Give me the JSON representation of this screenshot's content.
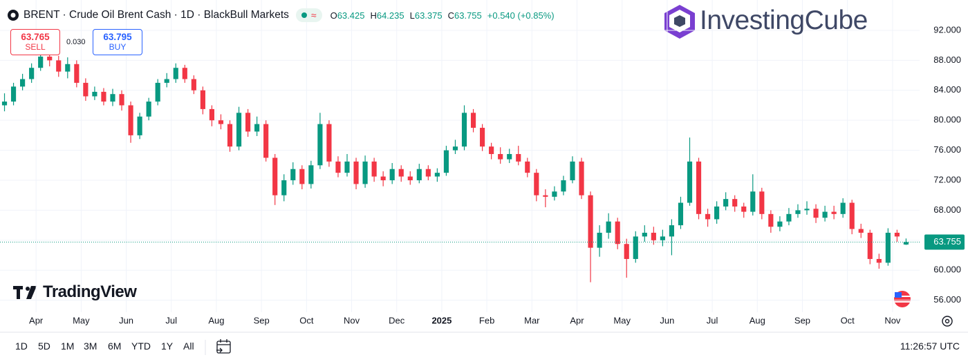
{
  "header": {
    "symbol": "BRENT · Crude Oil Brent Cash · 1D · BlackBull Markets",
    "ohlc": [
      {
        "label": "O",
        "value": "63.425"
      },
      {
        "label": "H",
        "value": "64.235"
      },
      {
        "label": "L",
        "value": "63.375"
      },
      {
        "label": "C",
        "value": "63.755"
      }
    ],
    "change": "+0.540 (+0.85%)"
  },
  "trade": {
    "sell": {
      "price": "63.765",
      "label": "SELL"
    },
    "spread": "0.030",
    "buy": {
      "price": "63.795",
      "label": "BUY"
    }
  },
  "brand": "InvestingCube",
  "watermark": "TradingView",
  "toolbar": {
    "ranges": [
      "1D",
      "5D",
      "1M",
      "3M",
      "6M",
      "YTD",
      "1Y",
      "All"
    ],
    "time": "11:26:57 UTC"
  },
  "chart_data": {
    "type": "candlestick",
    "grid": true,
    "color_up": "#089981",
    "color_down": "#f23645",
    "xlim": [
      -0.8,
      19.6
    ],
    "ylim": [
      54.4,
      96.05
    ],
    "xticks": [
      {
        "value": 0,
        "label": "Apr"
      },
      {
        "value": 1,
        "label": "May"
      },
      {
        "value": 2,
        "label": "Jun"
      },
      {
        "value": 3,
        "label": "Jul"
      },
      {
        "value": 4,
        "label": "Aug"
      },
      {
        "value": 5,
        "label": "Sep"
      },
      {
        "value": 6,
        "label": "Oct"
      },
      {
        "value": 7,
        "label": "Nov"
      },
      {
        "value": 8,
        "label": "Dec"
      },
      {
        "value": 9,
        "label": "2025"
      },
      {
        "value": 10,
        "label": "Feb"
      },
      {
        "value": 11,
        "label": "Mar"
      },
      {
        "value": 12,
        "label": "Apr"
      },
      {
        "value": 13,
        "label": "May"
      },
      {
        "value": 14,
        "label": "Jun"
      },
      {
        "value": 15,
        "label": "Jul"
      },
      {
        "value": 16,
        "label": "Aug"
      },
      {
        "value": 17,
        "label": "Sep"
      },
      {
        "value": 18,
        "label": "Oct"
      },
      {
        "value": 19,
        "label": "Nov"
      }
    ],
    "yticks": [
      {
        "value": 56,
        "label": "56.000"
      },
      {
        "value": 60,
        "label": "60.000"
      },
      {
        "value": 64,
        "label": "64.000"
      },
      {
        "value": 68,
        "label": "68.000"
      },
      {
        "value": 72,
        "label": "72.000"
      },
      {
        "value": 76,
        "label": "76.000"
      },
      {
        "value": 80,
        "label": "80.000"
      },
      {
        "value": 84,
        "label": "84.000"
      },
      {
        "value": 88,
        "label": "88.000"
      },
      {
        "value": 92,
        "label": "92.000"
      }
    ],
    "last_price": {
      "value": 63.755,
      "label": "63.755"
    },
    "series": [
      {
        "x": [
          -0.7,
          -0.5,
          -0.3,
          -0.1,
          0.1,
          0.3,
          0.5,
          0.7,
          0.9,
          1.1,
          1.3,
          1.5,
          1.7,
          1.9,
          2.1,
          2.3,
          2.5,
          2.7,
          2.9,
          3.1,
          3.3,
          3.5,
          3.7,
          3.9,
          4.1,
          4.3,
          4.5,
          4.7,
          4.9,
          5.1,
          5.3,
          5.5,
          5.7,
          5.9,
          6.1,
          6.3,
          6.5,
          6.7,
          6.9,
          7.1,
          7.3,
          7.5,
          7.7,
          7.9,
          8.1,
          8.3,
          8.5,
          8.7,
          8.9,
          9.1,
          9.3,
          9.5,
          9.7,
          9.9,
          10.1,
          10.3,
          10.5,
          10.7,
          10.9,
          11.1,
          11.3,
          11.5,
          11.7,
          11.9,
          12.1,
          12.3,
          12.5,
          12.7,
          12.9,
          13.1,
          13.3,
          13.5,
          13.7,
          13.9,
          14.1,
          14.3,
          14.5,
          14.7,
          14.9,
          15.1,
          15.3,
          15.5,
          15.7,
          15.9,
          16.1,
          16.3,
          16.5,
          16.7,
          16.9,
          17.1,
          17.3,
          17.5,
          17.7,
          17.9,
          18.1,
          18.3,
          18.5,
          18.7,
          18.9,
          19.1,
          19.3
        ],
        "open": [
          82.0,
          82.5,
          84.5,
          85.5,
          87.0,
          88.5,
          88.0,
          86.5,
          87.5,
          85.0,
          83.2,
          83.8,
          82.5,
          83.5,
          82.0,
          78.0,
          80.5,
          82.5,
          85.0,
          85.5,
          87.0,
          85.5,
          84.0,
          81.5,
          80.0,
          79.5,
          76.5,
          81.0,
          78.5,
          79.5,
          75.0,
          70.0,
          72.0,
          73.5,
          71.5,
          74.0,
          79.5,
          74.5,
          73.0,
          74.5,
          71.5,
          74.5,
          72.5,
          72.0,
          73.5,
          72.5,
          72.0,
          73.5,
          72.5,
          73.0,
          76.0,
          76.5,
          81.0,
          79.0,
          76.5,
          75.5,
          74.8,
          75.5,
          74.5,
          73.0,
          70.0,
          69.8,
          70.5,
          72.0,
          74.5,
          70.0,
          63.0,
          65.0,
          66.5,
          63.5,
          61.5,
          64.5,
          65.0,
          64.0,
          64.5,
          66.0,
          69.0,
          74.5,
          67.5,
          66.8,
          68.5,
          69.5,
          68.5,
          67.8,
          70.5,
          67.5,
          65.8,
          66.5,
          67.5,
          68.0,
          68.2,
          67.0,
          67.8,
          67.5,
          69.0,
          65.5,
          65.0,
          61.5,
          61.0,
          65.0,
          63.425
        ],
        "high": [
          83.6,
          85.0,
          86.2,
          87.6,
          89.2,
          89.5,
          88.6,
          88.4,
          88.0,
          85.6,
          84.5,
          84.3,
          84.2,
          84.0,
          82.5,
          81.0,
          83.0,
          85.5,
          86.3,
          87.6,
          87.4,
          86.0,
          84.5,
          82.0,
          80.8,
          80.0,
          81.8,
          81.5,
          80.5,
          80.0,
          75.5,
          72.8,
          74.4,
          74.0,
          74.6,
          81.0,
          80.0,
          75.2,
          75.5,
          75.0,
          75.3,
          75.0,
          73.2,
          74.3,
          74.0,
          73.2,
          74.2,
          74.0,
          73.6,
          76.6,
          77.4,
          82.0,
          81.5,
          79.5,
          77.0,
          76.4,
          76.2,
          76.6,
          75.0,
          73.5,
          70.8,
          71.2,
          72.6,
          75.2,
          75.0,
          70.5,
          66.0,
          67.6,
          67.0,
          64.2,
          65.2,
          66.0,
          65.8,
          65.4,
          66.8,
          69.8,
          77.7,
          75.0,
          68.2,
          69.2,
          70.4,
          70.0,
          69.0,
          72.8,
          71.0,
          68.0,
          67.2,
          68.3,
          68.8,
          69.2,
          68.8,
          68.6,
          68.6,
          69.6,
          69.4,
          66.2,
          65.4,
          62.2,
          65.6,
          65.4,
          64.235
        ],
        "low": [
          81.2,
          82.0,
          84.0,
          85.0,
          86.6,
          87.2,
          85.8,
          85.6,
          84.4,
          82.6,
          82.7,
          82.0,
          81.9,
          81.3,
          77.0,
          77.5,
          80.0,
          82.0,
          84.4,
          85.0,
          85.0,
          83.5,
          80.8,
          79.2,
          78.8,
          75.8,
          76.0,
          77.8,
          77.9,
          74.5,
          68.7,
          69.2,
          71.4,
          70.8,
          70.9,
          73.5,
          73.8,
          72.4,
          72.5,
          70.8,
          71.0,
          71.8,
          71.2,
          71.5,
          71.8,
          71.4,
          71.6,
          72.0,
          71.8,
          72.6,
          75.5,
          76.0,
          78.4,
          75.9,
          74.8,
          74.2,
          74.3,
          74.0,
          72.4,
          69.2,
          68.4,
          69.3,
          70.0,
          71.6,
          69.5,
          58.4,
          61.8,
          64.2,
          62.8,
          59.0,
          61.0,
          63.8,
          63.4,
          63.2,
          62.0,
          65.5,
          68.6,
          66.8,
          65.8,
          66.2,
          68.0,
          67.8,
          67.0,
          67.3,
          66.8,
          65.0,
          65.2,
          66.0,
          67.0,
          67.4,
          66.3,
          66.5,
          66.8,
          67.0,
          64.8,
          64.3,
          60.8,
          60.2,
          60.6,
          63.8,
          63.375
        ],
        "close": [
          82.5,
          84.5,
          85.5,
          87.0,
          88.5,
          88.0,
          86.5,
          87.5,
          85.0,
          83.2,
          83.8,
          82.5,
          83.5,
          82.0,
          78.0,
          80.5,
          82.5,
          85.0,
          85.5,
          87.0,
          85.5,
          84.0,
          81.5,
          80.0,
          79.5,
          76.5,
          81.0,
          78.5,
          79.5,
          75.0,
          70.0,
          72.0,
          73.5,
          71.5,
          74.0,
          79.5,
          74.5,
          73.0,
          74.5,
          71.5,
          74.5,
          72.5,
          72.0,
          73.5,
          72.5,
          72.0,
          73.5,
          72.5,
          73.0,
          76.0,
          76.5,
          81.0,
          79.0,
          76.5,
          75.5,
          74.8,
          75.5,
          74.5,
          73.0,
          70.0,
          69.8,
          70.5,
          72.0,
          74.5,
          70.0,
          63.0,
          65.0,
          66.5,
          63.5,
          61.5,
          64.5,
          65.0,
          64.0,
          64.5,
          66.0,
          69.0,
          74.5,
          67.5,
          66.8,
          68.5,
          69.5,
          68.5,
          67.8,
          70.5,
          67.5,
          65.8,
          66.5,
          67.5,
          68.0,
          68.2,
          67.0,
          67.8,
          67.5,
          69.0,
          65.5,
          65.0,
          61.5,
          61.0,
          65.0,
          64.5,
          63.755
        ]
      }
    ]
  }
}
